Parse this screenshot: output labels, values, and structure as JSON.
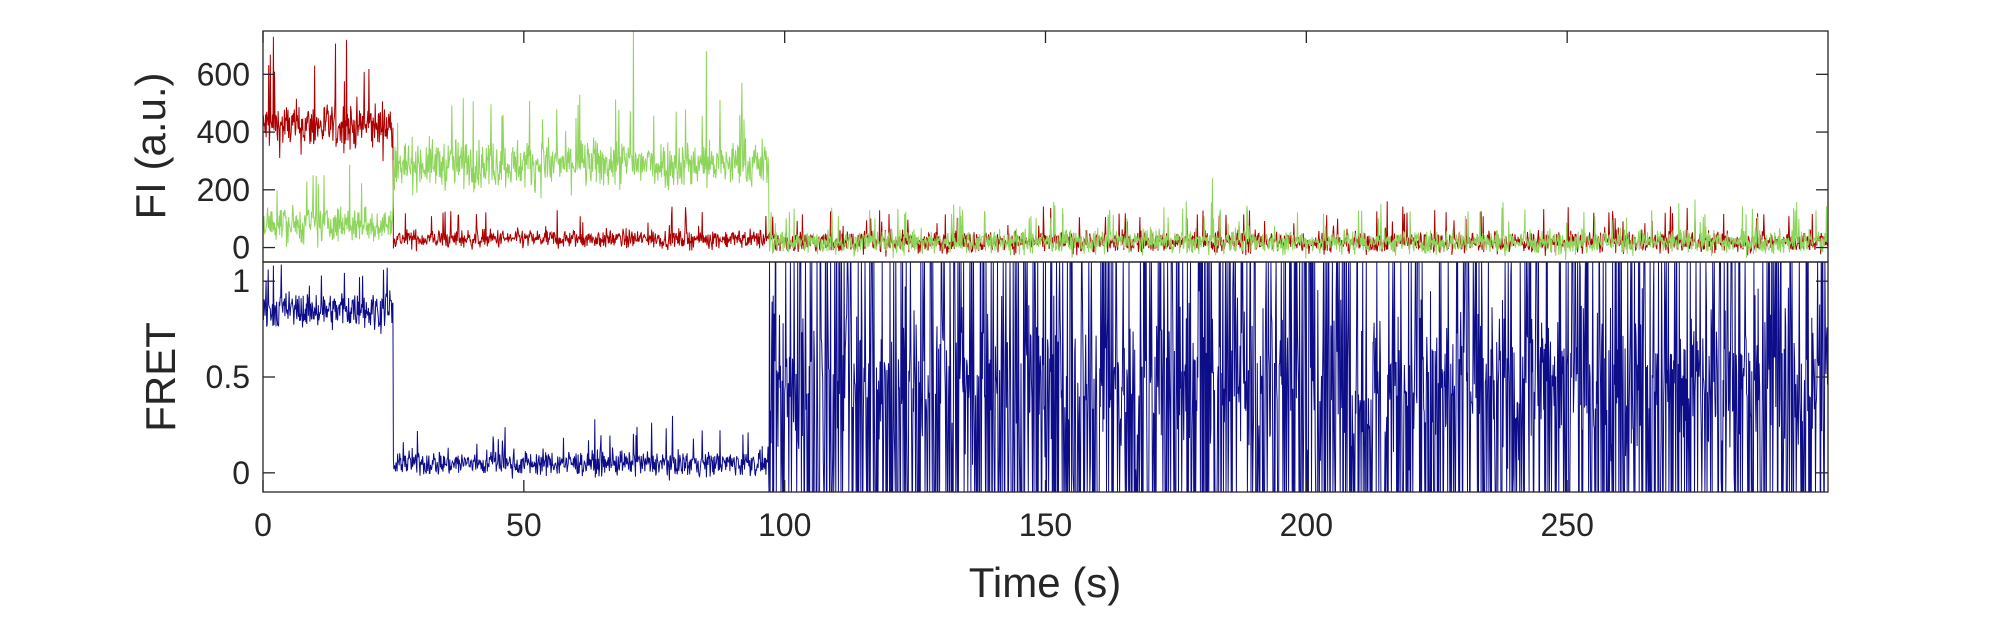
{
  "chart_data": [
    {
      "type": "line",
      "panel": "top",
      "ylabel": "FI (a.u.)",
      "xlim": [
        0,
        300
      ],
      "ylim": [
        -50,
        750
      ],
      "yticks": [
        0,
        200,
        400,
        600
      ],
      "ytick_labels": [
        "0",
        "200",
        "400",
        "600"
      ],
      "grid": false,
      "series": [
        {
          "color": "#ac0000",
          "segments": [
            {
              "x0": 0,
              "x1": 25,
              "mean": 420,
              "noise": 90
            },
            {
              "x0": 25,
              "x1": 97,
              "mean": 30,
              "noise": 35
            },
            {
              "x0": 97,
              "x1": 300,
              "mean": 20,
              "noise": 40
            }
          ],
          "peaks": [
            {
              "x": 2,
              "y": 730
            },
            {
              "x": 16,
              "y": 720
            }
          ]
        },
        {
          "color": "#8ed55c",
          "segments": [
            {
              "x0": 0,
              "x1": 25,
              "mean": 80,
              "noise": 70
            },
            {
              "x0": 25,
              "x1": 97,
              "mean": 290,
              "noise": 90
            },
            {
              "x0": 97,
              "x1": 300,
              "mean": 20,
              "noise": 45
            }
          ],
          "peaks": [
            {
              "x": 71,
              "y": 750
            },
            {
              "x": 85,
              "y": 680
            },
            {
              "x": 182,
              "y": 240
            }
          ]
        }
      ]
    },
    {
      "type": "line",
      "panel": "bottom",
      "ylabel": "FRET",
      "xlabel": "Time (s)",
      "xlim": [
        0,
        300
      ],
      "ylim": [
        -0.1,
        1.1
      ],
      "yticks": [
        0,
        0.5,
        1
      ],
      "ytick_labels": [
        "0",
        "0.5",
        "1"
      ],
      "xticks": [
        0,
        50,
        100,
        150,
        200,
        250
      ],
      "xtick_labels": [
        "0",
        "50",
        "100",
        "150",
        "200",
        "250"
      ],
      "grid": false,
      "series": [
        {
          "color": "#0d0d8a",
          "segments": [
            {
              "x0": 0,
              "x1": 25,
              "mean": 0.85,
              "noise": 0.1,
              "mode": "noise"
            },
            {
              "x0": 25,
              "x1": 97,
              "mean": 0.05,
              "noise": 0.07,
              "mode": "noise"
            },
            {
              "x0": 97,
              "x1": 300,
              "mean": 0.5,
              "noise": 0.5,
              "mode": "spiky"
            }
          ]
        }
      ]
    }
  ]
}
